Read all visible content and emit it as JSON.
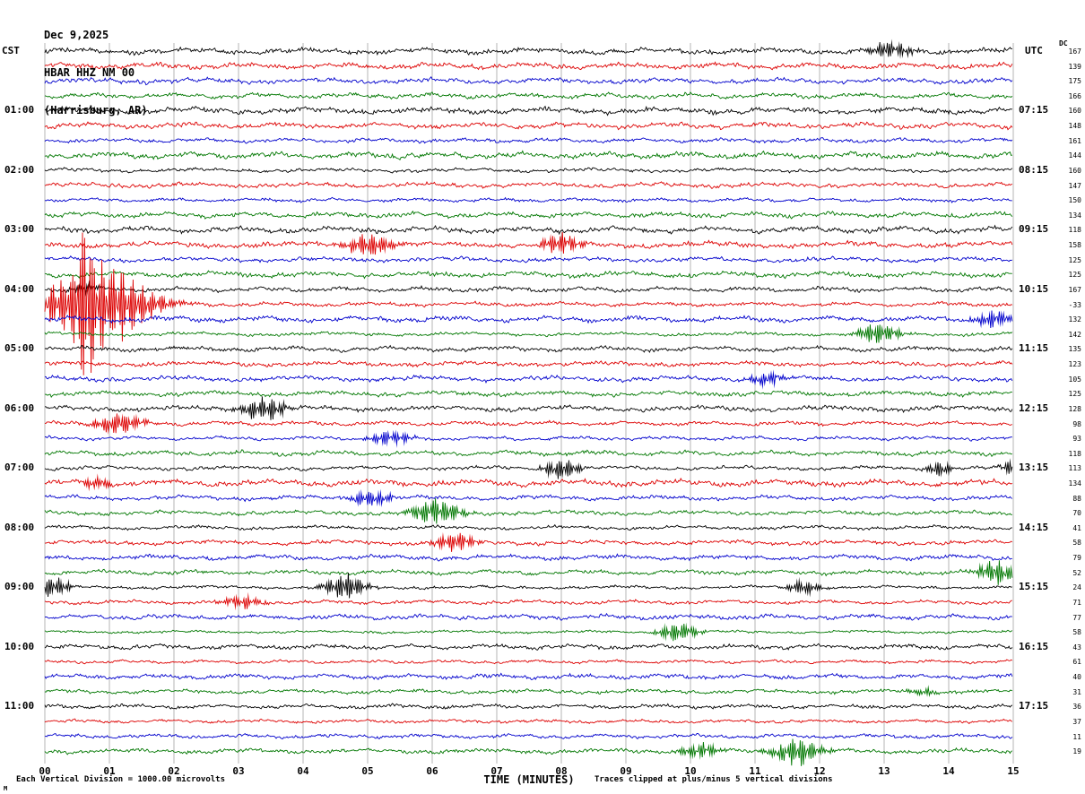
{
  "header": {
    "date": "Dec 9,2025",
    "station": "HBAR HHZ NM 00",
    "location": "(Harrisburg, AR)"
  },
  "axes": {
    "left_header": "CST",
    "right_header": "UTC",
    "dc_header": "DC",
    "left_times": [
      "01:00",
      "02:00",
      "03:00",
      "04:00",
      "05:00",
      "06:00",
      "07:00",
      "08:00",
      "09:00",
      "10:00",
      "11:00"
    ],
    "right_times": [
      "07:15",
      "08:15",
      "09:15",
      "10:15",
      "11:15",
      "12:15",
      "13:15",
      "14:15",
      "15:15",
      "16:15",
      "17:15"
    ],
    "x_ticks": [
      "00",
      "01",
      "02",
      "03",
      "04",
      "05",
      "06",
      "07",
      "08",
      "09",
      "10",
      "11",
      "12",
      "13",
      "14",
      "15"
    ],
    "x_title": "TIME (MINUTES)"
  },
  "footer": {
    "left": "Each Vertical Division = 1000.00 microvolts",
    "right": "Traces clipped at plus/minus 5 vertical divisions",
    "mark": "M"
  },
  "colors": {
    "black": "#000000",
    "red": "#dd0000",
    "blue": "#0000cc",
    "green": "#007700",
    "grid": "#949494"
  },
  "chart_data": {
    "type": "line",
    "title": "Webicorder record HBAR HHZ NM 00 (Harrisburg, AR) Dec 9,2025",
    "xlabel": "TIME (MINUTES)",
    "x_range": [
      0,
      15
    ],
    "rows_count": 48,
    "row_duration_minutes": 15,
    "color_cycle": [
      "black",
      "red",
      "blue",
      "green"
    ],
    "dc_values": [
      167,
      139,
      175,
      166,
      160,
      148,
      161,
      144,
      160,
      147,
      150,
      134,
      118,
      158,
      125,
      125,
      167,
      -33,
      132,
      142,
      135,
      123,
      105,
      125,
      128,
      98,
      93,
      118,
      113,
      134,
      88,
      70,
      41,
      58,
      79,
      52,
      24,
      71,
      77,
      58,
      43,
      61,
      40,
      31,
      36,
      37,
      11,
      19
    ],
    "events": [
      {
        "row": 0,
        "minute": 13.1,
        "amp": 8,
        "width": 0.3
      },
      {
        "row": 13,
        "minute": 5.05,
        "amp": 12,
        "width": 0.35
      },
      {
        "row": 13,
        "minute": 8.0,
        "amp": 9,
        "width": 0.3
      },
      {
        "row": 16,
        "minute": 0.62,
        "amp": 6,
        "width": 0.2
      },
      {
        "row": 17,
        "minute": 0.62,
        "amp": 55,
        "width": 0.12
      },
      {
        "row": 17,
        "minute": 0.8,
        "amp": 40,
        "width": 0.8
      },
      {
        "row": 18,
        "minute": 14.7,
        "amp": 8,
        "width": 0.3
      },
      {
        "row": 19,
        "minute": 12.9,
        "amp": 11,
        "width": 0.3
      },
      {
        "row": 22,
        "minute": 11.2,
        "amp": 6,
        "width": 0.3
      },
      {
        "row": 24,
        "minute": 3.4,
        "amp": 13,
        "width": 0.3
      },
      {
        "row": 25,
        "minute": 1.15,
        "amp": 10,
        "width": 0.35
      },
      {
        "row": 26,
        "minute": 5.35,
        "amp": 7,
        "width": 0.3
      },
      {
        "row": 28,
        "minute": 8.0,
        "amp": 10,
        "width": 0.25
      },
      {
        "row": 28,
        "minute": 13.85,
        "amp": 7,
        "width": 0.2
      },
      {
        "row": 28,
        "minute": 14.95,
        "amp": 6,
        "width": 0.15
      },
      {
        "row": 29,
        "minute": 0.8,
        "amp": 6,
        "width": 0.25
      },
      {
        "row": 30,
        "minute": 5.05,
        "amp": 8,
        "width": 0.3
      },
      {
        "row": 31,
        "minute": 6.05,
        "amp": 13,
        "width": 0.35
      },
      {
        "row": 33,
        "minute": 6.35,
        "amp": 9,
        "width": 0.3
      },
      {
        "row": 35,
        "minute": 14.75,
        "amp": 11,
        "width": 0.3
      },
      {
        "row": 36,
        "minute": 0.1,
        "amp": 11,
        "width": 0.25
      },
      {
        "row": 36,
        "minute": 4.65,
        "amp": 13,
        "width": 0.3
      },
      {
        "row": 36,
        "minute": 11.75,
        "amp": 7,
        "width": 0.25
      },
      {
        "row": 37,
        "minute": 3.05,
        "amp": 6,
        "width": 0.3
      },
      {
        "row": 39,
        "minute": 9.8,
        "amp": 9,
        "width": 0.3
      },
      {
        "row": 43,
        "minute": 13.6,
        "amp": 4,
        "width": 0.2
      },
      {
        "row": 47,
        "minute": 10.15,
        "amp": 7,
        "width": 0.3
      },
      {
        "row": 47,
        "minute": 11.65,
        "amp": 13,
        "width": 0.35
      }
    ]
  }
}
